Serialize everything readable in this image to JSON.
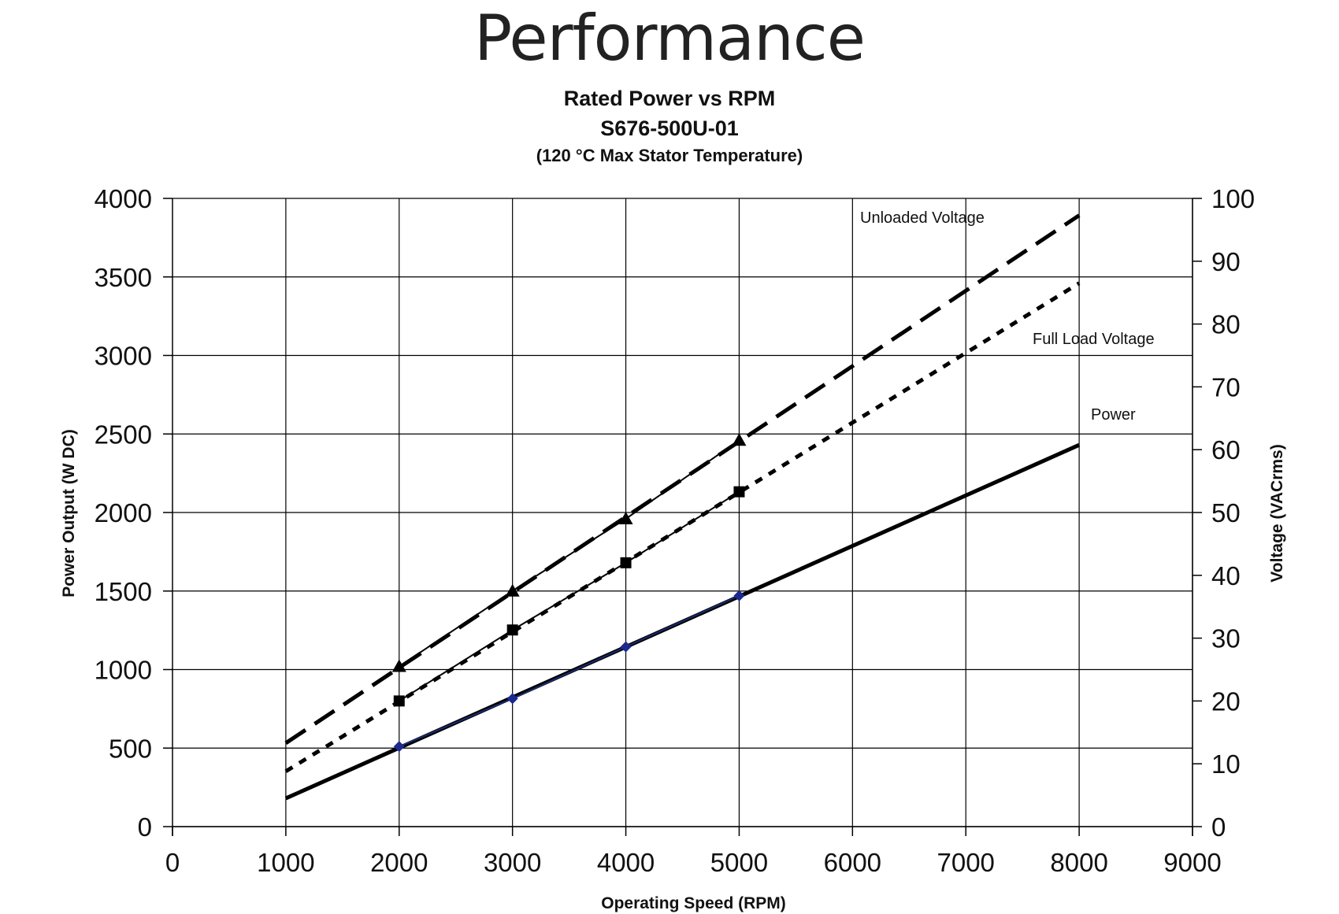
{
  "page": {
    "heading": "Performance"
  },
  "chart_data": {
    "type": "line",
    "title": "Rated Power vs RPM",
    "subtitle": "S676-500U-01",
    "note": "(120 °C Max Stator Temperature)",
    "xlabel": "Operating Speed (RPM)",
    "ylabel": "Power Output (W DC)",
    "y2label": "Voltage (VACrms)",
    "xlim": [
      0,
      9000
    ],
    "ylim": [
      0,
      4000
    ],
    "y2lim": [
      0,
      100
    ],
    "x_ticks": [
      0,
      1000,
      2000,
      3000,
      4000,
      5000,
      6000,
      7000,
      8000,
      9000
    ],
    "y_ticks": [
      0,
      500,
      1000,
      1500,
      2000,
      2500,
      3000,
      3500,
      4000
    ],
    "y2_ticks": [
      0,
      10,
      20,
      30,
      40,
      50,
      60,
      70,
      80,
      90,
      100
    ],
    "grid": true,
    "series": [
      {
        "name": "Unloaded Voltage",
        "axis": "y2",
        "marker": "triangle",
        "points": [
          {
            "x": 2000,
            "y": 25.5
          },
          {
            "x": 3000,
            "y": 37.5
          },
          {
            "x": 4000,
            "y": 49
          },
          {
            "x": 5000,
            "y": 61.5
          }
        ],
        "trend": {
          "x": [
            1000,
            8000
          ],
          "y": [
            13.3,
            97.3
          ],
          "style": "long-dash"
        }
      },
      {
        "name": "Full Load Voltage",
        "axis": "y2",
        "marker": "square",
        "points": [
          {
            "x": 2000,
            "y": 20
          },
          {
            "x": 3000,
            "y": 31.3
          },
          {
            "x": 4000,
            "y": 42
          },
          {
            "x": 5000,
            "y": 53.3
          }
        ],
        "trend": {
          "x": [
            1000,
            8000
          ],
          "y": [
            8.8,
            86.5
          ],
          "style": "short-dash"
        }
      },
      {
        "name": "Power",
        "axis": "y",
        "marker": "diamond",
        "points": [
          {
            "x": 2000,
            "y": 510
          },
          {
            "x": 3000,
            "y": 815
          },
          {
            "x": 4000,
            "y": 1145
          },
          {
            "x": 5000,
            "y": 1470
          }
        ],
        "trend": {
          "x": [
            1000,
            8000
          ],
          "y": [
            180,
            2430
          ],
          "style": "solid"
        }
      }
    ],
    "annotations": [
      {
        "text": "Unloaded Voltage",
        "series": "Unloaded Voltage"
      },
      {
        "text": "Full Load Voltage",
        "series": "Full Load Voltage"
      },
      {
        "text": "Power",
        "series": "Power"
      }
    ]
  }
}
